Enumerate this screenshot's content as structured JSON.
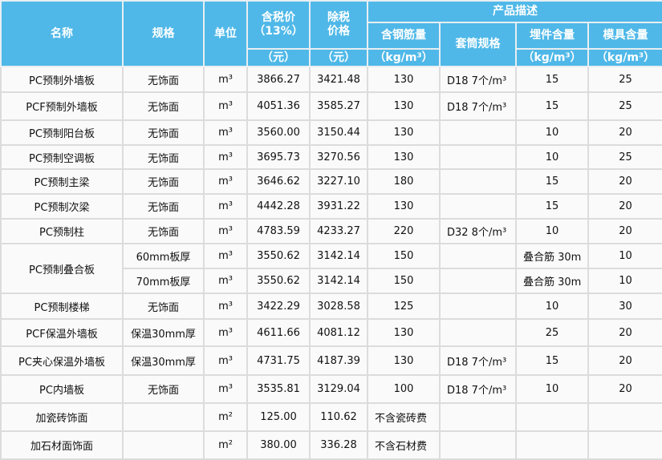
{
  "header": {
    "name": "名称",
    "spec": "规格",
    "unit": "单位",
    "price_tax": "含税价",
    "price_tax_rate": "（13%）",
    "price_tax_unit": "（元）",
    "price_notax_1": "除税",
    "price_notax_2": "价格",
    "price_notax_unit": "（元）",
    "product_desc": "产品描述",
    "steel": "含钢筋量",
    "steel_unit": "（kg/m³）",
    "sleeve": "套筒规格",
    "embed": "埋件含量",
    "embed_unit": "（kg/m³）",
    "mold": "模具含量",
    "mold_unit": "（kg/m³）"
  },
  "colors": {
    "header_bg": "#4fb8e8",
    "header_text": "#ffffff",
    "cell_bg": "#fafafa",
    "border": "#dcdcdc"
  },
  "rows": [
    {
      "name": "PC预制外墙板",
      "spec": "无饰面",
      "unit": "m³",
      "price_tax": "3866.27",
      "price_notax": "3421.48",
      "steel": "130",
      "sleeve": "D18 7个/m³",
      "embed": "15",
      "mold": "25"
    },
    {
      "name": "PCF预制外墙板",
      "spec": "无饰面",
      "unit": "m³",
      "price_tax": "4051.36",
      "price_notax": "3585.27",
      "steel": "130",
      "sleeve": "D18 7个/m³",
      "embed": "15",
      "mold": "25"
    },
    {
      "name": "PC预制阳台板",
      "spec": "无饰面",
      "unit": "m³",
      "price_tax": "3560.00",
      "price_notax": "3150.44",
      "steel": "130",
      "sleeve": "",
      "embed": "10",
      "mold": "20"
    },
    {
      "name": "PC预制空调板",
      "spec": "无饰面",
      "unit": "m³",
      "price_tax": "3695.73",
      "price_notax": "3270.56",
      "steel": "130",
      "sleeve": "",
      "embed": "10",
      "mold": "25"
    },
    {
      "name": "PC预制主梁",
      "spec": "无饰面",
      "unit": "m³",
      "price_tax": "3646.62",
      "price_notax": "3227.10",
      "steel": "180",
      "sleeve": "",
      "embed": "15",
      "mold": "20"
    },
    {
      "name": "PC预制次梁",
      "spec": "无饰面",
      "unit": "m³",
      "price_tax": "4442.28",
      "price_notax": "3931.22",
      "steel": "130",
      "sleeve": "",
      "embed": "15",
      "mold": "20"
    },
    {
      "name": "PC预制柱",
      "spec": "无饰面",
      "unit": "m³",
      "price_tax": "4783.59",
      "price_notax": "4233.27",
      "steel": "220",
      "sleeve": "D32 8个/m³",
      "embed": "10",
      "mold": "20"
    },
    {
      "name": "PC预制叠合板",
      "spec": "60mm板厚",
      "unit": "m³",
      "price_tax": "3550.62",
      "price_notax": "3142.14",
      "steel": "150",
      "sleeve": "",
      "embed": "叠合筋 30m",
      "mold": "10",
      "rowspan": 2
    },
    {
      "name": "",
      "spec": "70mm板厚",
      "unit": "m³",
      "price_tax": "3550.62",
      "price_notax": "3142.14",
      "steel": "150",
      "sleeve": "",
      "embed": "叠合筋 30m",
      "mold": "10",
      "merged": true
    },
    {
      "name": "PC预制楼梯",
      "spec": "无饰面",
      "unit": "m³",
      "price_tax": "3422.29",
      "price_notax": "3028.58",
      "steel": "125",
      "sleeve": "",
      "embed": "10",
      "mold": "30"
    },
    {
      "name": "PCF保温外墙板",
      "spec": "保温30mm厚",
      "unit": "m³",
      "price_tax": "4611.66",
      "price_notax": "4081.12",
      "steel": "130",
      "sleeve": "",
      "embed": "25",
      "mold": "20"
    },
    {
      "name": "PC夹心保温外墙板",
      "spec": "保温30mm厚",
      "unit": "m³",
      "price_tax": "4731.75",
      "price_notax": "4187.39",
      "steel": "130",
      "sleeve": "D18 7个/m³",
      "embed": "15",
      "mold": "20"
    },
    {
      "name": "PC内墙板",
      "spec": "无饰面",
      "unit": "m³",
      "price_tax": "3535.81",
      "price_notax": "3129.04",
      "steel": "100",
      "sleeve": "D18 7个/m³",
      "embed": "10",
      "mold": "20"
    },
    {
      "name": "加瓷砖饰面",
      "spec": "",
      "unit": "m²",
      "price_tax": "125.00",
      "price_notax": "110.62",
      "steel": "不含瓷砖费",
      "sleeve": "",
      "embed": "",
      "mold": ""
    },
    {
      "name": "加石材面饰面",
      "spec": "",
      "unit": "m²",
      "price_tax": "380.00",
      "price_notax": "336.28",
      "steel": "不含石材费",
      "sleeve": "",
      "embed": "",
      "mold": ""
    }
  ]
}
